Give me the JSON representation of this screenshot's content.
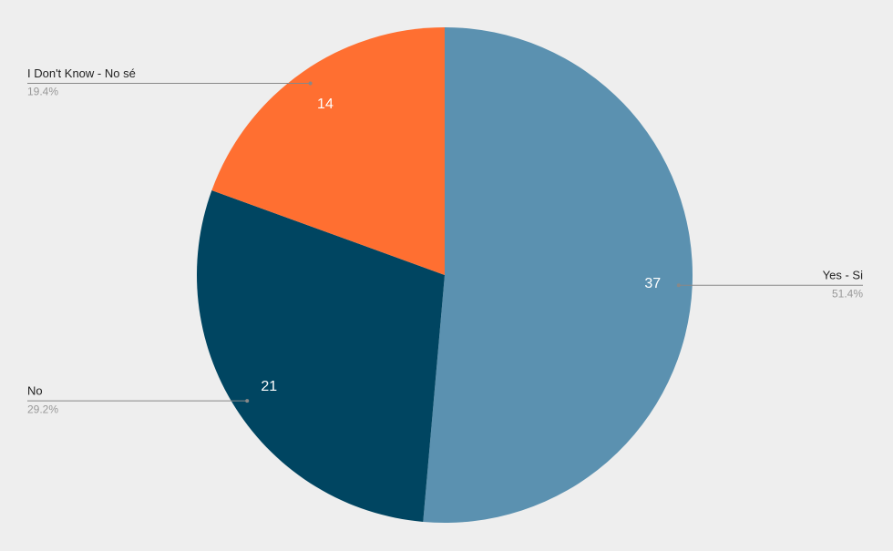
{
  "chart_data": {
    "type": "pie",
    "categories": [
      "Yes - Si",
      "No",
      "I Don't Know - No sé"
    ],
    "values": [
      37,
      21,
      14
    ],
    "percentages": [
      {
        "value": 51.4,
        "label": "51.4%"
      },
      {
        "value": 29.2,
        "label": "29.2%"
      },
      {
        "value": 19.4,
        "label": "19.4%"
      }
    ],
    "colors": [
      "#5b91b0",
      "#004561",
      "#ff6f31"
    ]
  }
}
